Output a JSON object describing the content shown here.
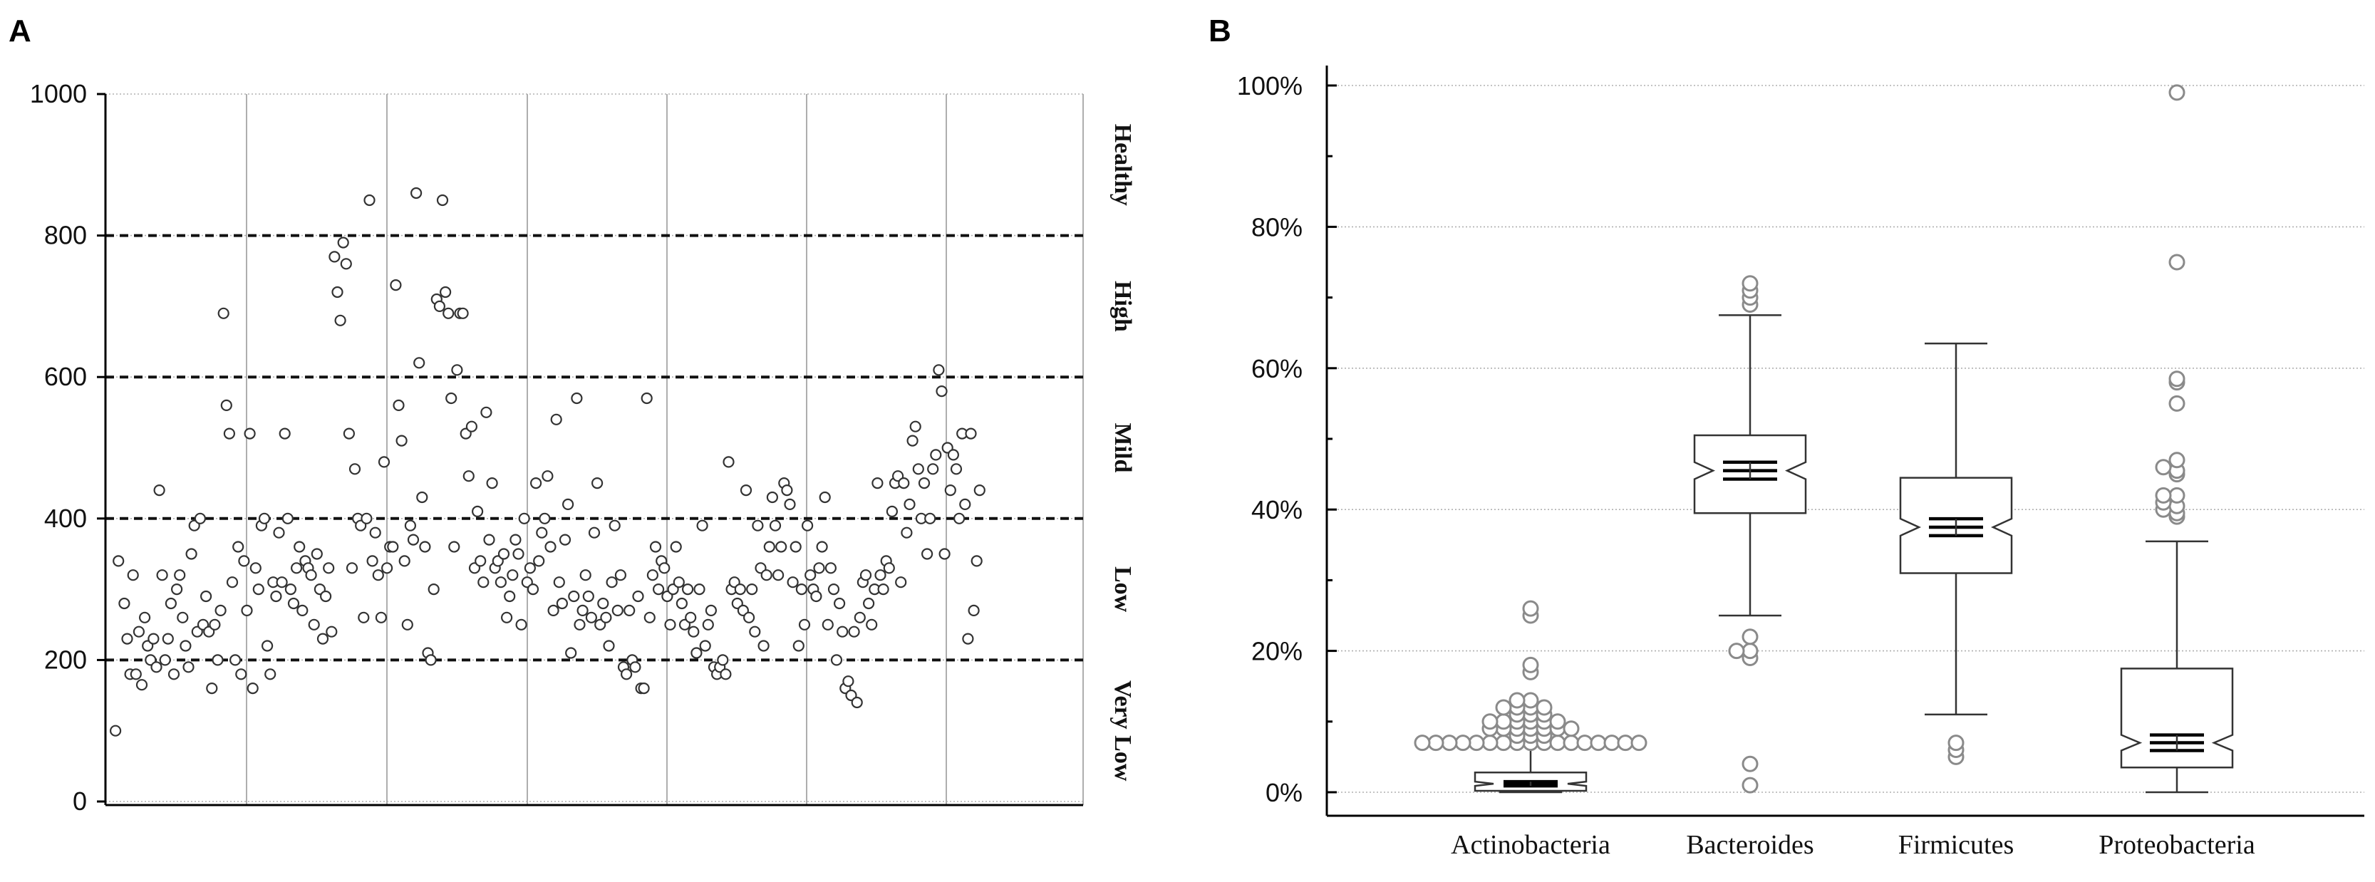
{
  "chart_data": [
    {
      "panel": "A",
      "type": "scatter",
      "title": "",
      "xlabel": "",
      "ylabel": "",
      "ylim": [
        0,
        1000
      ],
      "xlim": [
        0,
        330
      ],
      "y_ticks": [
        "0",
        "200",
        "400",
        "600",
        "800",
        "1000"
      ],
      "y_tick_values": [
        0,
        200,
        400,
        600,
        800,
        1000
      ],
      "thresholds": [
        200,
        400,
        600,
        800
      ],
      "bands": [
        {
          "label": "Healthy",
          "center": 900
        },
        {
          "label": "High",
          "center": 700
        },
        {
          "label": "Mild",
          "center": 500
        },
        {
          "label": "Low",
          "center": 300
        },
        {
          "label": "Very Low",
          "center": 100
        }
      ],
      "points": [
        [
          1,
          100
        ],
        [
          2,
          340
        ],
        [
          4,
          280
        ],
        [
          5,
          230
        ],
        [
          6,
          180
        ],
        [
          7,
          320
        ],
        [
          8,
          180
        ],
        [
          9,
          240
        ],
        [
          10,
          165
        ],
        [
          11,
          260
        ],
        [
          12,
          220
        ],
        [
          13,
          200
        ],
        [
          14,
          230
        ],
        [
          15,
          190
        ],
        [
          16,
          440
        ],
        [
          17,
          320
        ],
        [
          18,
          200
        ],
        [
          19,
          230
        ],
        [
          20,
          280
        ],
        [
          21,
          180
        ],
        [
          22,
          300
        ],
        [
          23,
          320
        ],
        [
          24,
          260
        ],
        [
          25,
          220
        ],
        [
          26,
          190
        ],
        [
          27,
          350
        ],
        [
          28,
          390
        ],
        [
          29,
          240
        ],
        [
          30,
          400
        ],
        [
          31,
          250
        ],
        [
          32,
          290
        ],
        [
          33,
          240
        ],
        [
          34,
          160
        ],
        [
          35,
          250
        ],
        [
          36,
          200
        ],
        [
          37,
          270
        ],
        [
          38,
          690
        ],
        [
          39,
          560
        ],
        [
          40,
          520
        ],
        [
          41,
          310
        ],
        [
          42,
          200
        ],
        [
          43,
          360
        ],
        [
          44,
          180
        ],
        [
          45,
          340
        ],
        [
          46,
          270
        ],
        [
          47,
          520
        ],
        [
          48,
          160
        ],
        [
          49,
          330
        ],
        [
          50,
          300
        ],
        [
          51,
          390
        ],
        [
          52,
          400
        ],
        [
          53,
          220
        ],
        [
          54,
          180
        ],
        [
          55,
          310
        ],
        [
          56,
          290
        ],
        [
          57,
          380
        ],
        [
          58,
          310
        ],
        [
          59,
          520
        ],
        [
          60,
          400
        ],
        [
          61,
          300
        ],
        [
          62,
          280
        ],
        [
          63,
          330
        ],
        [
          64,
          360
        ],
        [
          65,
          270
        ],
        [
          66,
          340
        ],
        [
          67,
          330
        ],
        [
          68,
          320
        ],
        [
          69,
          250
        ],
        [
          70,
          350
        ],
        [
          71,
          300
        ],
        [
          72,
          230
        ],
        [
          73,
          290
        ],
        [
          74,
          330
        ],
        [
          75,
          240
        ],
        [
          76,
          770
        ],
        [
          77,
          720
        ],
        [
          78,
          680
        ],
        [
          79,
          790
        ],
        [
          80,
          760
        ],
        [
          81,
          520
        ],
        [
          82,
          330
        ],
        [
          83,
          470
        ],
        [
          84,
          400
        ],
        [
          85,
          390
        ],
        [
          86,
          260
        ],
        [
          87,
          400
        ],
        [
          88,
          850
        ],
        [
          89,
          340
        ],
        [
          90,
          380
        ],
        [
          91,
          320
        ],
        [
          92,
          260
        ],
        [
          93,
          480
        ],
        [
          94,
          330
        ],
        [
          95,
          360
        ],
        [
          96,
          360
        ],
        [
          97,
          730
        ],
        [
          98,
          560
        ],
        [
          99,
          510
        ],
        [
          100,
          340
        ],
        [
          101,
          250
        ],
        [
          102,
          390
        ],
        [
          103,
          370
        ],
        [
          104,
          860
        ],
        [
          105,
          620
        ],
        [
          106,
          430
        ],
        [
          107,
          360
        ],
        [
          108,
          210
        ],
        [
          109,
          200
        ],
        [
          110,
          300
        ],
        [
          111,
          710
        ],
        [
          112,
          700
        ],
        [
          113,
          850
        ],
        [
          114,
          720
        ],
        [
          115,
          690
        ],
        [
          116,
          570
        ],
        [
          117,
          360
        ],
        [
          118,
          610
        ],
        [
          119,
          690
        ],
        [
          120,
          690
        ],
        [
          121,
          520
        ],
        [
          122,
          460
        ],
        [
          123,
          530
        ],
        [
          124,
          330
        ],
        [
          125,
          410
        ],
        [
          126,
          340
        ],
        [
          127,
          310
        ],
        [
          128,
          550
        ],
        [
          129,
          370
        ],
        [
          130,
          450
        ],
        [
          131,
          330
        ],
        [
          132,
          340
        ],
        [
          133,
          310
        ],
        [
          134,
          350
        ],
        [
          135,
          260
        ],
        [
          136,
          290
        ],
        [
          137,
          320
        ],
        [
          138,
          370
        ],
        [
          139,
          350
        ],
        [
          140,
          250
        ],
        [
          141,
          400
        ],
        [
          142,
          310
        ],
        [
          143,
          330
        ],
        [
          144,
          300
        ],
        [
          145,
          450
        ],
        [
          146,
          340
        ],
        [
          147,
          380
        ],
        [
          148,
          400
        ],
        [
          149,
          460
        ],
        [
          150,
          360
        ],
        [
          151,
          270
        ],
        [
          152,
          540
        ],
        [
          153,
          310
        ],
        [
          154,
          280
        ],
        [
          155,
          370
        ],
        [
          156,
          420
        ],
        [
          157,
          210
        ],
        [
          158,
          290
        ],
        [
          159,
          570
        ],
        [
          160,
          250
        ],
        [
          161,
          270
        ],
        [
          162,
          320
        ],
        [
          163,
          290
        ],
        [
          164,
          260
        ],
        [
          165,
          380
        ],
        [
          166,
          450
        ],
        [
          167,
          250
        ],
        [
          168,
          280
        ],
        [
          169,
          260
        ],
        [
          170,
          220
        ],
        [
          171,
          310
        ],
        [
          172,
          390
        ],
        [
          173,
          270
        ],
        [
          174,
          320
        ],
        [
          175,
          190
        ],
        [
          176,
          180
        ],
        [
          177,
          270
        ],
        [
          178,
          200
        ],
        [
          179,
          190
        ],
        [
          180,
          290
        ],
        [
          181,
          160
        ],
        [
          182,
          160
        ],
        [
          183,
          570
        ],
        [
          184,
          260
        ],
        [
          185,
          320
        ],
        [
          186,
          360
        ],
        [
          187,
          300
        ],
        [
          188,
          340
        ],
        [
          189,
          330
        ],
        [
          190,
          290
        ],
        [
          191,
          250
        ],
        [
          192,
          300
        ],
        [
          193,
          360
        ],
        [
          194,
          310
        ],
        [
          195,
          280
        ],
        [
          196,
          250
        ],
        [
          197,
          300
        ],
        [
          198,
          260
        ],
        [
          199,
          240
        ],
        [
          200,
          210
        ],
        [
          201,
          300
        ],
        [
          202,
          390
        ],
        [
          203,
          220
        ],
        [
          204,
          250
        ],
        [
          205,
          270
        ],
        [
          206,
          190
        ],
        [
          207,
          180
        ],
        [
          208,
          190
        ],
        [
          209,
          200
        ],
        [
          210,
          180
        ],
        [
          211,
          480
        ],
        [
          212,
          300
        ],
        [
          213,
          310
        ],
        [
          214,
          280
        ],
        [
          215,
          300
        ],
        [
          216,
          270
        ],
        [
          217,
          440
        ],
        [
          218,
          260
        ],
        [
          219,
          300
        ],
        [
          220,
          240
        ],
        [
          221,
          390
        ],
        [
          222,
          330
        ],
        [
          223,
          220
        ],
        [
          224,
          320
        ],
        [
          225,
          360
        ],
        [
          226,
          430
        ],
        [
          227,
          390
        ],
        [
          228,
          320
        ],
        [
          229,
          360
        ],
        [
          230,
          450
        ],
        [
          231,
          440
        ],
        [
          232,
          420
        ],
        [
          233,
          310
        ],
        [
          234,
          360
        ],
        [
          235,
          220
        ],
        [
          236,
          300
        ],
        [
          237,
          250
        ],
        [
          238,
          390
        ],
        [
          239,
          320
        ],
        [
          240,
          300
        ],
        [
          241,
          290
        ],
        [
          242,
          330
        ],
        [
          243,
          360
        ],
        [
          244,
          430
        ],
        [
          245,
          250
        ],
        [
          246,
          330
        ],
        [
          247,
          300
        ],
        [
          248,
          200
        ],
        [
          249,
          280
        ],
        [
          250,
          240
        ],
        [
          251,
          160
        ],
        [
          252,
          170
        ],
        [
          253,
          150
        ],
        [
          254,
          240
        ],
        [
          255,
          140
        ],
        [
          256,
          260
        ],
        [
          257,
          310
        ],
        [
          258,
          320
        ],
        [
          259,
          280
        ],
        [
          260,
          250
        ],
        [
          261,
          300
        ],
        [
          262,
          450
        ],
        [
          263,
          320
        ],
        [
          264,
          300
        ],
        [
          265,
          340
        ],
        [
          266,
          330
        ],
        [
          267,
          410
        ],
        [
          268,
          450
        ],
        [
          269,
          460
        ],
        [
          270,
          310
        ],
        [
          271,
          450
        ],
        [
          272,
          380
        ],
        [
          273,
          420
        ],
        [
          274,
          510
        ],
        [
          275,
          530
        ],
        [
          276,
          470
        ],
        [
          277,
          400
        ],
        [
          278,
          450
        ],
        [
          279,
          350
        ],
        [
          280,
          400
        ],
        [
          281,
          470
        ],
        [
          282,
          490
        ],
        [
          283,
          610
        ],
        [
          284,
          580
        ],
        [
          285,
          350
        ],
        [
          286,
          500
        ],
        [
          287,
          440
        ],
        [
          288,
          490
        ],
        [
          289,
          470
        ],
        [
          290,
          400
        ],
        [
          291,
          520
        ],
        [
          292,
          420
        ],
        [
          293,
          230
        ],
        [
          294,
          520
        ],
        [
          295,
          270
        ],
        [
          296,
          340
        ],
        [
          297,
          440
        ]
      ]
    },
    {
      "panel": "B",
      "type": "box",
      "title": "",
      "xlabel": "",
      "ylabel": "",
      "ylim": [
        0,
        100
      ],
      "y_ticks": [
        "0%",
        "20%",
        "40%",
        "60%",
        "80%",
        "100%"
      ],
      "y_tick_values": [
        0,
        20,
        40,
        60,
        80,
        100
      ],
      "categories": [
        "Actinobacteria",
        "Bacteroides",
        "Firmicutes",
        "Proteobacteria"
      ],
      "boxes": [
        {
          "name": "Actinobacteria",
          "whisker_low": 0,
          "q1": 0.2,
          "median": 1.2,
          "q3": 2.8,
          "whisker_high": 6.5,
          "notch_low": 0.9,
          "notch_high": 1.5,
          "outliers": [
            7,
            7,
            7,
            7,
            7,
            7,
            7,
            7,
            7,
            7,
            7,
            7,
            7,
            7,
            7,
            7,
            7,
            8,
            8,
            8,
            9,
            9,
            9,
            9,
            9,
            9,
            9,
            10,
            10,
            10,
            10,
            10,
            10,
            11,
            11,
            11,
            12,
            12,
            12,
            12,
            13,
            13,
            17,
            18,
            25,
            26
          ]
        },
        {
          "name": "Bacteroides",
          "whisker_low": 25,
          "q1": 39.5,
          "median": 45.5,
          "q3": 50.5,
          "whisker_high": 67.5,
          "notch_low": 44.3,
          "notch_high": 46.7,
          "outliers": [
            1,
            4,
            19,
            20,
            20,
            22,
            69,
            70,
            71,
            72
          ]
        },
        {
          "name": "Firmicutes",
          "whisker_low": 11,
          "q1": 31,
          "median": 37.5,
          "q3": 44.5,
          "whisker_high": 63.5,
          "notch_low": 36.3,
          "notch_high": 38.7,
          "outliers": [
            5,
            6,
            7
          ]
        },
        {
          "name": "Proteobacteria",
          "whisker_low": 0,
          "q1": 3.5,
          "median": 7,
          "q3": 17.5,
          "whisker_high": 35.5,
          "notch_low": 5.9,
          "notch_high": 8.1,
          "outliers": [
            39,
            39.5,
            40,
            40.5,
            41,
            42,
            42,
            45,
            45.5,
            46,
            47,
            55,
            58,
            58.5,
            75,
            99
          ]
        }
      ]
    }
  ]
}
